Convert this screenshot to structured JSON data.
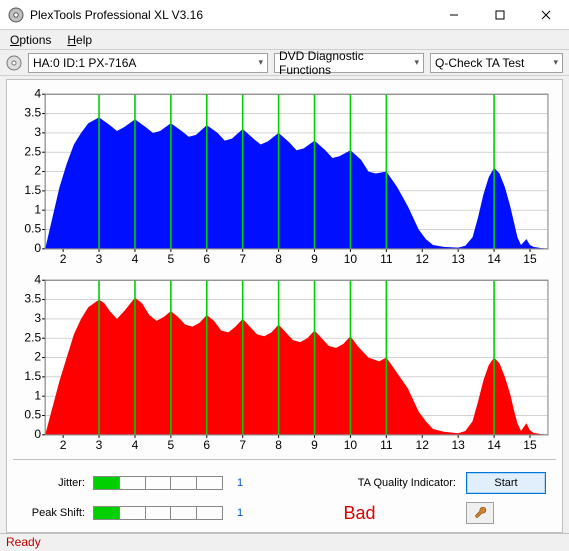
{
  "window": {
    "title": "PlexTools Professional XL V3.16"
  },
  "menu": {
    "options": "Options",
    "help": "Help"
  },
  "toolbar": {
    "device": "HA:0 ID:1  PX-716A",
    "category": "DVD Diagnostic Functions",
    "test": "Q-Check TA Test"
  },
  "charts": {
    "top": {
      "color": "#0010ff",
      "grid_color": "#b8b8b8",
      "vline_color": "#00d000",
      "ylim": [
        0,
        4
      ],
      "ytick_step": 0.5,
      "yticks": [
        "0",
        "0.5",
        "1",
        "1.5",
        "2",
        "2.5",
        "3",
        "3.5",
        "4"
      ],
      "xlim": [
        1.5,
        15.5
      ],
      "xticks": [
        2,
        3,
        4,
        5,
        6,
        7,
        8,
        9,
        10,
        11,
        12,
        13,
        14,
        15
      ],
      "vlines": [
        3,
        4,
        5,
        6,
        7,
        8,
        9,
        10,
        11,
        14
      ],
      "profile": [
        [
          1.5,
          0
        ],
        [
          1.7,
          0.8
        ],
        [
          1.9,
          1.6
        ],
        [
          2.1,
          2.2
        ],
        [
          2.3,
          2.7
        ],
        [
          2.5,
          3.0
        ],
        [
          2.7,
          3.25
        ],
        [
          3.0,
          3.4
        ],
        [
          3.3,
          3.2
        ],
        [
          3.5,
          3.05
        ],
        [
          3.7,
          3.15
        ],
        [
          4.0,
          3.35
        ],
        [
          4.3,
          3.15
        ],
        [
          4.5,
          3.0
        ],
        [
          4.7,
          3.05
        ],
        [
          5.0,
          3.25
        ],
        [
          5.3,
          3.05
        ],
        [
          5.5,
          2.9
        ],
        [
          5.7,
          2.95
        ],
        [
          6.0,
          3.2
        ],
        [
          6.3,
          3.0
        ],
        [
          6.5,
          2.8
        ],
        [
          6.7,
          2.85
        ],
        [
          7.0,
          3.1
        ],
        [
          7.3,
          2.85
        ],
        [
          7.5,
          2.7
        ],
        [
          7.7,
          2.78
        ],
        [
          8.0,
          3.0
        ],
        [
          8.3,
          2.75
        ],
        [
          8.5,
          2.55
        ],
        [
          8.7,
          2.6
        ],
        [
          9.0,
          2.8
        ],
        [
          9.3,
          2.55
        ],
        [
          9.5,
          2.35
        ],
        [
          9.7,
          2.4
        ],
        [
          10.0,
          2.55
        ],
        [
          10.3,
          2.3
        ],
        [
          10.5,
          2.0
        ],
        [
          10.7,
          1.95
        ],
        [
          11.0,
          2.0
        ],
        [
          11.3,
          1.6
        ],
        [
          11.6,
          1.1
        ],
        [
          11.9,
          0.5
        ],
        [
          12.1,
          0.25
        ],
        [
          12.3,
          0.1
        ],
        [
          12.6,
          0.05
        ],
        [
          13.0,
          0.03
        ],
        [
          13.2,
          0.08
        ],
        [
          13.4,
          0.3
        ],
        [
          13.55,
          0.8
        ],
        [
          13.7,
          1.4
        ],
        [
          13.85,
          1.85
        ],
        [
          14.0,
          2.1
        ],
        [
          14.15,
          1.95
        ],
        [
          14.3,
          1.6
        ],
        [
          14.45,
          1.1
        ],
        [
          14.55,
          0.7
        ],
        [
          14.65,
          0.3
        ],
        [
          14.75,
          0.1
        ],
        [
          14.9,
          0.25
        ],
        [
          15.0,
          0.1
        ],
        [
          15.1,
          0.05
        ],
        [
          15.3,
          0.02
        ],
        [
          15.5,
          0
        ]
      ]
    },
    "bottom": {
      "color": "#ff0000",
      "grid_color": "#b8b8b8",
      "vline_color": "#00d000",
      "ylim": [
        0,
        4
      ],
      "ytick_step": 0.5,
      "yticks": [
        "0",
        "0.5",
        "1",
        "1.5",
        "2",
        "2.5",
        "3",
        "3.5",
        "4"
      ],
      "xlim": [
        1.5,
        15.5
      ],
      "xticks": [
        2,
        3,
        4,
        5,
        6,
        7,
        8,
        9,
        10,
        11,
        12,
        13,
        14,
        15
      ],
      "vlines": [
        3,
        4,
        5,
        6,
        7,
        8,
        9,
        10,
        11,
        14
      ],
      "profile": [
        [
          1.5,
          0
        ],
        [
          1.7,
          0.7
        ],
        [
          1.9,
          1.4
        ],
        [
          2.1,
          2.0
        ],
        [
          2.3,
          2.6
        ],
        [
          2.5,
          3.0
        ],
        [
          2.7,
          3.3
        ],
        [
          3.0,
          3.5
        ],
        [
          3.15,
          3.4
        ],
        [
          3.3,
          3.2
        ],
        [
          3.5,
          3.0
        ],
        [
          3.7,
          3.2
        ],
        [
          4.0,
          3.55
        ],
        [
          4.2,
          3.4
        ],
        [
          4.4,
          3.1
        ],
        [
          4.6,
          2.95
        ],
        [
          4.8,
          3.05
        ],
        [
          5.0,
          3.2
        ],
        [
          5.2,
          3.05
        ],
        [
          5.4,
          2.85
        ],
        [
          5.6,
          2.8
        ],
        [
          5.8,
          2.9
        ],
        [
          6.0,
          3.1
        ],
        [
          6.2,
          2.95
        ],
        [
          6.4,
          2.7
        ],
        [
          6.6,
          2.65
        ],
        [
          6.8,
          2.8
        ],
        [
          7.0,
          3.0
        ],
        [
          7.2,
          2.8
        ],
        [
          7.4,
          2.6
        ],
        [
          7.6,
          2.55
        ],
        [
          7.8,
          2.65
        ],
        [
          8.0,
          2.85
        ],
        [
          8.2,
          2.65
        ],
        [
          8.4,
          2.45
        ],
        [
          8.6,
          2.4
        ],
        [
          8.8,
          2.5
        ],
        [
          9.0,
          2.7
        ],
        [
          9.2,
          2.5
        ],
        [
          9.4,
          2.3
        ],
        [
          9.6,
          2.25
        ],
        [
          9.8,
          2.35
        ],
        [
          10.0,
          2.55
        ],
        [
          10.2,
          2.3
        ],
        [
          10.5,
          2.0
        ],
        [
          10.8,
          1.9
        ],
        [
          11.0,
          2.0
        ],
        [
          11.3,
          1.6
        ],
        [
          11.6,
          1.2
        ],
        [
          11.9,
          0.6
        ],
        [
          12.1,
          0.35
        ],
        [
          12.3,
          0.15
        ],
        [
          12.6,
          0.08
        ],
        [
          13.0,
          0.04
        ],
        [
          13.2,
          0.1
        ],
        [
          13.4,
          0.35
        ],
        [
          13.55,
          0.85
        ],
        [
          13.7,
          1.4
        ],
        [
          13.85,
          1.8
        ],
        [
          14.0,
          2.0
        ],
        [
          14.15,
          1.85
        ],
        [
          14.3,
          1.5
        ],
        [
          14.45,
          1.05
        ],
        [
          14.55,
          0.65
        ],
        [
          14.65,
          0.3
        ],
        [
          14.75,
          0.1
        ],
        [
          14.9,
          0.3
        ],
        [
          15.0,
          0.12
        ],
        [
          15.1,
          0.05
        ],
        [
          15.3,
          0.02
        ],
        [
          15.5,
          0
        ]
      ]
    }
  },
  "metrics": {
    "jitter_label": "Jitter:",
    "jitter_segments": 1,
    "jitter_total": 5,
    "jitter_value": "1",
    "peak_label": "Peak Shift:",
    "peak_segments": 1,
    "peak_total": 5,
    "peak_value": "1",
    "ta_label": "TA Quality Indicator:",
    "ta_value": "Bad",
    "start_btn": "Start"
  },
  "status": {
    "text": "Ready"
  }
}
